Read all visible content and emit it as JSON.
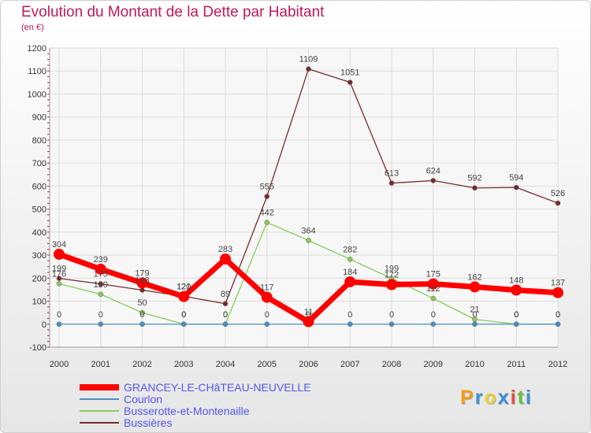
{
  "title": "Evolution du Montant de la Dette par Habitant",
  "subtitle": "(en €)",
  "logo": {
    "text": "Proxiti",
    "colors": [
      "#f39c12",
      "#3a8fd8",
      "#e8d33a",
      "#3a8fd8",
      "#e74c3c",
      "#6abf3f",
      "#3a8fd8"
    ]
  },
  "colors": {
    "title": "#c2185b",
    "legend_text": "#5555ee",
    "grid": "#dcdcdc",
    "axis": "#999999"
  },
  "chart_data": {
    "type": "line",
    "x": [
      "2000",
      "2001",
      "2002",
      "2003",
      "2004",
      "2005",
      "2006",
      "2007",
      "2008",
      "2009",
      "2010",
      "2011",
      "2012"
    ],
    "ylim": [
      -100,
      1200
    ],
    "yticks": [
      -100,
      0,
      100,
      200,
      300,
      400,
      500,
      600,
      700,
      800,
      900,
      1000,
      1100,
      1200
    ],
    "grid": true,
    "legend_position": "bottom-left",
    "series": [
      {
        "name": "GRANCEY-LE-CHâTEAU-NEUVELLE",
        "color": "#ff0000",
        "width": 7,
        "marker": 7,
        "values": [
          304,
          239,
          179,
          120,
          283,
          117,
          11,
          184,
          172,
          175,
          162,
          148,
          137
        ],
        "labels": [
          "304",
          "239",
          "179",
          "120",
          "283",
          "117",
          "11",
          "184",
          "172",
          "175",
          "162",
          "148",
          "137"
        ]
      },
      {
        "name": "Courlon",
        "color": "#4a90c8",
        "width": 1.3,
        "marker": 3,
        "values": [
          0,
          0,
          0,
          0,
          0,
          0,
          0,
          0,
          0,
          0,
          0,
          0,
          0
        ],
        "labels": [
          "0",
          "0",
          "0",
          "0",
          "0",
          "0",
          "0",
          "0",
          "0",
          "0",
          "0",
          "0",
          "0"
        ]
      },
      {
        "name": "Busserotte-et-Montenaille",
        "color": "#88cc55",
        "width": 1.3,
        "marker": 3,
        "values": [
          176,
          130,
          50,
          0,
          0,
          442,
          364,
          282,
          199,
          112,
          21,
          0,
          0
        ],
        "labels": [
          "176",
          "130",
          "50",
          "0",
          "0",
          "442",
          "364",
          "282",
          "199",
          "112",
          "21",
          "0",
          "0"
        ]
      },
      {
        "name": "Bussières",
        "color": "#7a2a2a",
        "width": 1.3,
        "marker": 3,
        "values": [
          199,
          175,
          148,
          121,
          89,
          555,
          1109,
          1051,
          613,
          624,
          592,
          594,
          526
        ],
        "labels": [
          "199",
          "175",
          "148",
          "121",
          "89",
          "555",
          "1109",
          "1051",
          "613",
          "624",
          "592",
          "594",
          "526"
        ]
      }
    ]
  }
}
